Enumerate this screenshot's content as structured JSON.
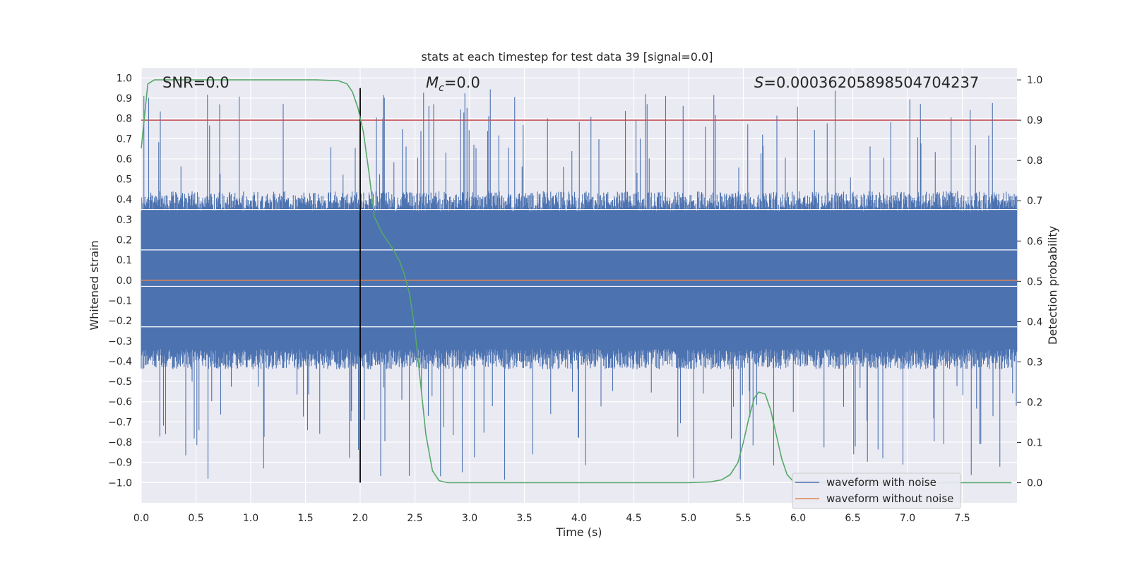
{
  "chart_data": {
    "type": "line",
    "title": "stats at each timestep for test data 39 [signal=0.0]",
    "xlabel": "Time (s)",
    "ylabel_left": "Whitened strain",
    "ylabel_right": "Detection probability",
    "xlim": [
      0.0,
      8.0
    ],
    "ylim_left": [
      -1.1,
      1.05
    ],
    "ylim_right": [
      -0.05,
      1.03
    ],
    "x_ticks": [
      "0.0",
      "0.5",
      "1.0",
      "1.5",
      "2.0",
      "2.5",
      "3.0",
      "3.5",
      "4.0",
      "4.5",
      "5.0",
      "5.5",
      "6.0",
      "6.5",
      "7.0",
      "7.5"
    ],
    "y_ticks_left": [
      "1.0",
      "0.9",
      "0.8",
      "0.7",
      "0.6",
      "0.5",
      "0.4",
      "0.3",
      "0.2",
      "0.1",
      "0.0",
      "-0.1",
      "-0.2",
      "-0.3",
      "-0.4",
      "-0.5",
      "-0.6",
      "-0.7",
      "-0.8",
      "-0.9",
      "-1.0"
    ],
    "y_ticks_right": [
      "1.0",
      "0.9",
      "0.8",
      "0.7",
      "0.6",
      "0.5",
      "0.4",
      "0.3",
      "0.2",
      "0.1",
      "0.0"
    ],
    "annotations": {
      "snr": "SNR=0.0",
      "mc_symbol": "M",
      "mc_sub": "c",
      "mc_value": "=0.0",
      "s_symbol": "S",
      "s_value": "=0.00036205898504704237"
    },
    "threshold": {
      "axis": "right",
      "value": 0.9,
      "color": "#c44e52"
    },
    "marker_line": {
      "x": 2.0,
      "y_from": -1.0,
      "y_to": 0.95,
      "color": "#000000"
    },
    "series": [
      {
        "name": "waveform with noise",
        "axis": "left",
        "color": "#4c72b0",
        "description_stats": {
          "core_amplitude": 0.4,
          "peak_max": 0.95,
          "peak_min": -1.0
        }
      },
      {
        "name": "waveform without noise",
        "axis": "left",
        "color": "#dd8452",
        "x": [
          0.0,
          8.0
        ],
        "values": [
          0.0,
          0.0
        ]
      },
      {
        "name": "detection probability",
        "axis": "right",
        "color": "#55a868",
        "x": [
          0.0,
          0.06,
          0.12,
          0.2,
          0.4,
          0.8,
          1.2,
          1.6,
          1.8,
          1.88,
          1.93,
          1.98,
          2.03,
          2.08,
          2.13,
          2.2,
          2.25,
          2.3,
          2.36,
          2.4,
          2.45,
          2.5,
          2.55,
          2.6,
          2.66,
          2.72,
          2.8,
          3.0,
          3.5,
          4.0,
          4.5,
          5.0,
          5.2,
          5.3,
          5.38,
          5.45,
          5.5,
          5.55,
          5.6,
          5.64,
          5.7,
          5.75,
          5.8,
          5.85,
          5.9,
          5.95,
          6.0,
          6.1,
          6.5,
          7.0,
          7.5,
          7.95
        ],
        "values": [
          0.83,
          0.99,
          1.0,
          1.0,
          1.0,
          1.0,
          1.0,
          1.0,
          0.998,
          0.99,
          0.97,
          0.93,
          0.87,
          0.77,
          0.66,
          0.62,
          0.6,
          0.58,
          0.55,
          0.52,
          0.47,
          0.38,
          0.25,
          0.12,
          0.03,
          0.005,
          0.0,
          0.0,
          0.0,
          0.0,
          0.0,
          0.0,
          0.002,
          0.007,
          0.02,
          0.05,
          0.1,
          0.16,
          0.21,
          0.225,
          0.22,
          0.18,
          0.12,
          0.06,
          0.02,
          0.005,
          0.0,
          0.0,
          0.0,
          0.0,
          0.0,
          0.0
        ]
      }
    ],
    "legend": {
      "placement": "lower-right",
      "entries": [
        {
          "label": "waveform with noise",
          "color": "#4c72b0"
        },
        {
          "label": "waveform without noise",
          "color": "#dd8452"
        }
      ]
    }
  }
}
